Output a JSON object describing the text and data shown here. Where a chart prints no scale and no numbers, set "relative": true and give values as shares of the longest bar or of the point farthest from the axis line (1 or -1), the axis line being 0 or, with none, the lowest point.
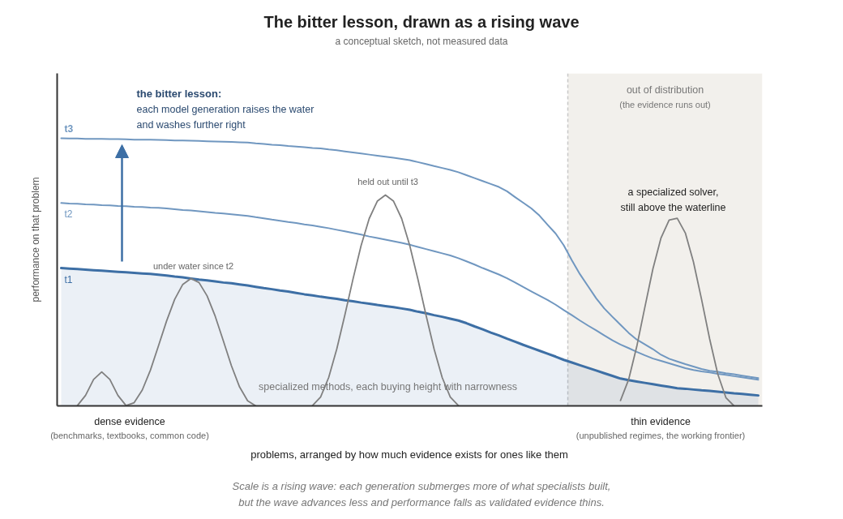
{
  "chart_data": {
    "type": "line",
    "relative": true,
    "tick_labels": false,
    "title": "The bitter lesson, drawn as a rising wave",
    "subtitle": "a conceptual sketch, not measured data",
    "xlabel": "problems, arranged by how much evidence exists for ones like them",
    "ylabel": "performance on that problem",
    "categories": [
      null,
      null,
      null,
      null,
      null,
      null,
      null,
      null,
      null,
      null,
      null,
      null,
      null,
      null,
      null,
      null,
      null,
      null,
      null,
      null,
      null,
      null,
      null,
      null,
      null,
      null,
      null,
      null,
      null,
      null,
      null,
      null,
      null,
      null,
      null,
      null,
      null,
      null,
      null,
      null,
      null,
      null,
      null,
      null,
      null,
      null,
      null,
      null,
      null,
      null,
      null,
      null,
      null,
      null,
      null,
      null,
      null,
      null,
      null,
      null,
      null,
      null,
      null,
      null,
      null,
      null,
      null,
      null,
      null,
      null,
      null,
      null,
      null,
      null,
      null,
      null,
      null,
      null,
      null,
      null,
      null,
      null,
      null,
      null,
      null,
      null,
      null
    ],
    "series": [
      {
        "name": "t3",
        "color": "#7097c0",
        "values": [
          1.0,
          0.999,
          0.999,
          0.998,
          0.998,
          0.998,
          0.997,
          0.997,
          0.996,
          0.995,
          0.995,
          0.995,
          0.994,
          0.993,
          0.992,
          0.992,
          0.991,
          0.99,
          0.989,
          0.988,
          0.987,
          0.986,
          0.985,
          0.984,
          0.981,
          0.979,
          0.976,
          0.974,
          0.971,
          0.969,
          0.967,
          0.964,
          0.962,
          0.958,
          0.955,
          0.951,
          0.947,
          0.943,
          0.939,
          0.935,
          0.931,
          0.927,
          0.923,
          0.918,
          0.911,
          0.904,
          0.896,
          0.889,
          0.882,
          0.873,
          0.862,
          0.851,
          0.84,
          0.829,
          0.818,
          0.802,
          0.78,
          0.759,
          0.738,
          0.711,
          0.677,
          0.644,
          0.6,
          0.544,
          0.492,
          0.447,
          0.402,
          0.364,
          0.333,
          0.303,
          0.273,
          0.248,
          0.23,
          0.212,
          0.191,
          0.176,
          0.166,
          0.156,
          0.147,
          0.138,
          0.131,
          0.127,
          0.122,
          0.118,
          0.113,
          0.108,
          0.104
        ]
      },
      {
        "name": "t2",
        "color": "#7097c0",
        "values": [
          0.758,
          0.756,
          0.755,
          0.753,
          0.752,
          0.75,
          0.749,
          0.747,
          0.746,
          0.744,
          0.743,
          0.741,
          0.74,
          0.738,
          0.735,
          0.732,
          0.73,
          0.727,
          0.724,
          0.721,
          0.719,
          0.716,
          0.713,
          0.71,
          0.705,
          0.701,
          0.696,
          0.692,
          0.687,
          0.683,
          0.678,
          0.674,
          0.669,
          0.664,
          0.658,
          0.652,
          0.646,
          0.64,
          0.633,
          0.627,
          0.621,
          0.615,
          0.609,
          0.602,
          0.594,
          0.586,
          0.578,
          0.57,
          0.562,
          0.552,
          0.54,
          0.528,
          0.515,
          0.503,
          0.491,
          0.477,
          0.461,
          0.444,
          0.428,
          0.412,
          0.396,
          0.378,
          0.358,
          0.339,
          0.319,
          0.3,
          0.282,
          0.263,
          0.245,
          0.229,
          0.216,
          0.202,
          0.189,
          0.177,
          0.168,
          0.159,
          0.15,
          0.141,
          0.134,
          0.129,
          0.125,
          0.12,
          0.116,
          0.111,
          0.107,
          0.102,
          0.098
        ]
      },
      {
        "name": "t1",
        "color": "#3d6fa5",
        "type": "area",
        "values": [
          0.515,
          0.513,
          0.511,
          0.509,
          0.507,
          0.505,
          0.503,
          0.501,
          0.499,
          0.497,
          0.495,
          0.493,
          0.49,
          0.487,
          0.483,
          0.48,
          0.476,
          0.472,
          0.469,
          0.465,
          0.461,
          0.458,
          0.454,
          0.45,
          0.445,
          0.44,
          0.436,
          0.431,
          0.427,
          0.422,
          0.417,
          0.413,
          0.408,
          0.404,
          0.4,
          0.395,
          0.391,
          0.386,
          0.382,
          0.377,
          0.373,
          0.369,
          0.364,
          0.359,
          0.352,
          0.346,
          0.339,
          0.333,
          0.326,
          0.319,
          0.309,
          0.297,
          0.286,
          0.274,
          0.263,
          0.251,
          0.24,
          0.228,
          0.217,
          0.206,
          0.195,
          0.184,
          0.172,
          0.162,
          0.152,
          0.142,
          0.132,
          0.122,
          0.112,
          0.102,
          0.096,
          0.091,
          0.086,
          0.081,
          0.076,
          0.071,
          0.066,
          0.064,
          0.061,
          0.058,
          0.056,
          0.053,
          0.05,
          0.047,
          0.045,
          0.042,
          0.039
        ]
      },
      {
        "color": "#808080",
        "values": [
          null,
          null,
          0.001,
          0.039,
          0.099,
          0.127,
          0.099,
          0.039,
          0.001,
          0.012,
          0.059,
          0.133,
          0.224,
          0.317,
          0.398,
          0.454,
          0.476,
          0.461,
          0.411,
          0.335,
          0.243,
          0.15,
          0.071,
          0.019,
          0,
          null,
          null,
          null,
          null,
          null,
          null,
          0.001,
          0.033,
          0.106,
          0.213,
          0.34,
          0.474,
          0.599,
          0.7,
          0.765,
          0.788,
          0.765,
          0.7,
          0.599,
          0.474,
          0.34,
          0.213,
          0.106,
          0.033,
          0.001,
          null,
          null,
          null,
          null,
          null,
          null,
          null,
          null,
          null,
          null,
          null,
          null,
          null,
          null,
          null,
          null,
          null,
          null,
          null,
          0.02,
          0.098,
          0.221,
          0.368,
          0.512,
          0.628,
          0.694,
          0.701,
          0.646,
          0.538,
          0.398,
          0.25,
          0.119,
          0.031,
          0,
          null,
          null,
          null
        ]
      }
    ],
    "annotations": [
      "the bitter lesson:",
      "each model generation raises the water",
      "and washes further right",
      "under water since t2",
      "held out until t3",
      "a specialized solver,\nstill above the waterline",
      "out of distribution",
      "(the evidence runs out)",
      "specialized methods, each buying height with narrowness",
      "dense evidence",
      "(benchmarks, textbooks, common code)",
      "thin evidence",
      "(unpublished regimes, the working frontier)",
      "Scale is a rising wave: each generation submerges more of what specialists built,",
      "but the wave advances less and performance falls as validated evidence thins."
    ]
  }
}
